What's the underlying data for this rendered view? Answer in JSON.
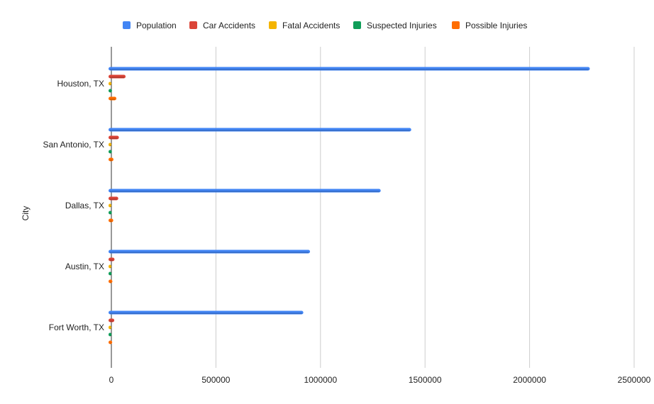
{
  "chart_data": {
    "type": "bar",
    "orientation": "horizontal",
    "ylabel": "City",
    "xlabel": "",
    "categories": [
      "Houston, TX",
      "San Antonio, TX",
      "Dallas, TX",
      "Austin, TX",
      "Fort Worth, TX"
    ],
    "xlim": [
      0,
      2500000
    ],
    "xticks": [
      "0",
      "500000",
      "1000000",
      "1500000",
      "2000000",
      "2500000"
    ],
    "grid": "vertical",
    "legend_position": "top",
    "series": [
      {
        "name": "Population",
        "color": "#4285F4",
        "values": [
          2288000,
          1434000,
          1288000,
          950000,
          918000
        ]
      },
      {
        "name": "Car Accidents",
        "color": "#DB4437",
        "values": [
          68000,
          36000,
          33000,
          15000,
          14000
        ]
      },
      {
        "name": "Fatal Accidents",
        "color": "#F4B400",
        "values": [
          300,
          200,
          200,
          100,
          100
        ]
      },
      {
        "name": "Suspected Injuries",
        "color": "#0F9D58",
        "values": [
          3000,
          2500,
          2200,
          1200,
          1000
        ]
      },
      {
        "name": "Possible Injuries",
        "color": "#FF6D00",
        "values": [
          24000,
          10000,
          9000,
          5000,
          4000
        ]
      }
    ]
  }
}
